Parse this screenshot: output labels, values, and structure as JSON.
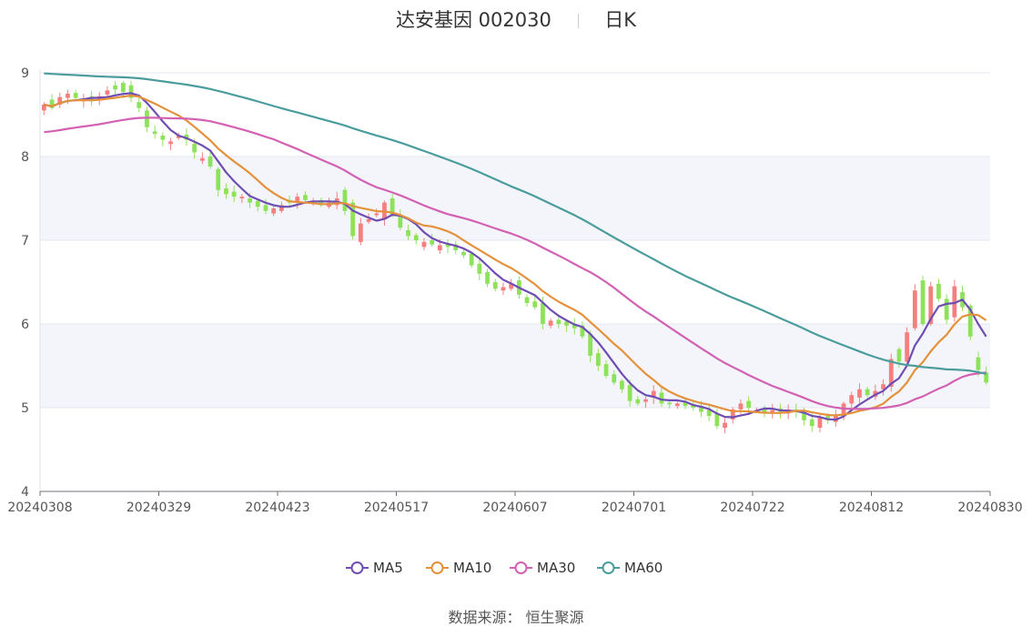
{
  "header": {
    "name": "达安基因",
    "code": "002030",
    "period": "日K"
  },
  "footer": {
    "source_label": "数据来源：",
    "source_name": "恒生聚源"
  },
  "chart_data": {
    "type": "candlestick",
    "y_ticks": [
      "4",
      "5",
      "6",
      "7",
      "8",
      "9"
    ],
    "ylim": [
      4,
      9
    ],
    "x_ticks": [
      "20240308",
      "20240329",
      "20240423",
      "20240517",
      "20240607",
      "20240701",
      "20240722",
      "20240812",
      "20240830"
    ],
    "candle_count": 120,
    "closes": [
      8.62,
      8.58,
      8.71,
      8.75,
      8.7,
      8.68,
      8.66,
      8.72,
      8.79,
      8.8,
      8.77,
      8.7,
      8.58,
      8.35,
      8.27,
      8.2,
      8.18,
      8.25,
      8.2,
      8.05,
      7.98,
      7.88,
      7.6,
      7.55,
      7.52,
      7.52,
      7.45,
      7.4,
      7.35,
      7.38,
      7.42,
      7.45,
      7.52,
      7.48,
      7.45,
      7.42,
      7.45,
      7.5,
      7.35,
      7.05,
      7.2,
      7.25,
      7.32,
      7.45,
      7.3,
      7.15,
      7.05,
      7.0,
      6.98,
      6.95,
      6.94,
      6.92,
      6.88,
      6.82,
      6.7,
      6.6,
      6.48,
      6.42,
      6.44,
      6.48,
      6.35,
      6.25,
      6.2,
      6.0,
      6.04,
      6.0,
      5.98,
      5.95,
      5.85,
      5.62,
      5.5,
      5.38,
      5.3,
      5.22,
      5.08,
      5.05,
      5.1,
      5.2,
      5.05,
      5.04,
      5.05,
      5.02,
      5.0,
      4.95,
      4.9,
      4.78,
      4.82,
      4.98,
      5.05,
      5.0,
      4.97,
      4.95,
      4.97,
      4.95,
      4.98,
      4.95,
      4.85,
      4.78,
      4.88,
      4.85,
      4.92,
      5.05,
      5.15,
      5.22,
      5.15,
      5.2,
      5.28,
      5.58,
      5.55,
      5.9,
      6.4,
      6.0,
      6.45,
      6.3,
      6.05,
      6.45,
      6.2,
      5.85,
      5.45,
      5.3
    ],
    "opens": [
      8.55,
      8.68,
      8.62,
      8.7,
      8.76,
      8.66,
      8.72,
      8.68,
      8.74,
      8.85,
      8.88,
      8.85,
      8.65,
      8.55,
      8.3,
      8.25,
      8.15,
      8.22,
      8.26,
      8.15,
      7.95,
      8.0,
      7.85,
      7.62,
      7.58,
      7.5,
      7.5,
      7.47,
      7.42,
      7.32,
      7.35,
      7.48,
      7.45,
      7.54,
      7.45,
      7.48,
      7.4,
      7.42,
      7.6,
      7.45,
      6.98,
      7.22,
      7.3,
      7.25,
      7.5,
      7.3,
      7.12,
      7.06,
      6.92,
      7.0,
      6.88,
      6.96,
      6.95,
      6.86,
      6.84,
      6.72,
      6.62,
      6.5,
      6.4,
      6.42,
      6.52,
      6.32,
      6.27,
      6.25,
      5.98,
      6.05,
      6.03,
      5.99,
      5.98,
      5.88,
      5.65,
      5.52,
      5.4,
      5.32,
      5.27,
      5.1,
      5.07,
      5.12,
      5.18,
      5.06,
      5.02,
      5.07,
      5.04,
      5.02,
      4.97,
      4.93,
      4.76,
      4.86,
      4.98,
      5.08,
      4.96,
      4.99,
      4.93,
      4.99,
      4.93,
      4.98,
      4.96,
      4.86,
      4.76,
      4.9,
      4.83,
      4.9,
      5.05,
      5.12,
      5.22,
      5.13,
      5.22,
      5.25,
      5.7,
      5.55,
      5.95,
      6.52,
      6.0,
      6.48,
      6.3,
      6.08,
      6.38,
      6.22,
      5.6,
      5.42
    ]
  },
  "legend": [
    {
      "name": "MA5",
      "color": "#6f4db3"
    },
    {
      "name": "MA10",
      "color": "#e4913c"
    },
    {
      "name": "MA30",
      "color": "#d361b3"
    },
    {
      "name": "MA60",
      "color": "#4a9d9c"
    }
  ],
  "colors": {
    "up": "#f57f7f",
    "down": "#8ee25a",
    "band": "#f3f5fa",
    "gridline": "#e3e7f0",
    "axis": "#555555"
  }
}
